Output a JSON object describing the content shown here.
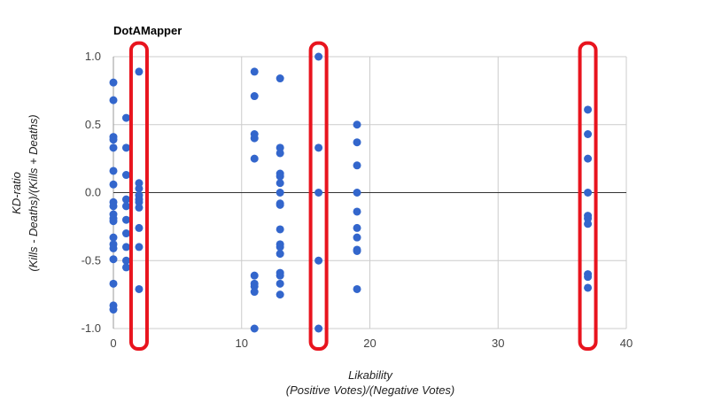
{
  "chart_data": {
    "type": "scatter",
    "title": "DotAMapper",
    "xlabel": "Likability",
    "xlabel_sub": "(Positive Votes)/(Negative Votes)",
    "ylabel": "KD-ratio",
    "ylabel_sub": "(Kills - Deaths)/(Kills + Deaths)",
    "xlim": [
      0,
      40
    ],
    "ylim": [
      -1.0,
      1.0
    ],
    "x_ticks": [
      0,
      10,
      20,
      30,
      40
    ],
    "x_tick_labels": [
      "0",
      "10",
      "20",
      "30",
      "40"
    ],
    "y_ticks": [
      1.0,
      0.5,
      0.0,
      -0.5,
      -1.0
    ],
    "y_tick_labels": [
      "1.0",
      "0.5",
      "0.0",
      "-0.5",
      "-1.0"
    ],
    "grid": true,
    "legend": "none",
    "series": [
      {
        "color": "#3366cc",
        "points": [
          [
            0,
            0.81
          ],
          [
            0,
            0.68
          ],
          [
            0,
            0.41
          ],
          [
            0,
            0.39
          ],
          [
            0,
            0.33
          ],
          [
            0,
            0.16
          ],
          [
            0,
            0.06
          ],
          [
            0,
            -0.07
          ],
          [
            0,
            -0.1
          ],
          [
            0,
            -0.16
          ],
          [
            0,
            -0.19
          ],
          [
            0,
            -0.21
          ],
          [
            0,
            -0.33
          ],
          [
            0,
            -0.38
          ],
          [
            0,
            -0.41
          ],
          [
            0,
            -0.49
          ],
          [
            0,
            -0.67
          ],
          [
            0,
            -0.83
          ],
          [
            0,
            -0.86
          ],
          [
            1,
            0.55
          ],
          [
            1,
            0.33
          ],
          [
            1,
            0.13
          ],
          [
            1,
            -0.05
          ],
          [
            1,
            -0.1
          ],
          [
            1,
            -0.2
          ],
          [
            1,
            -0.3
          ],
          [
            1,
            -0.4
          ],
          [
            1,
            -0.5
          ],
          [
            1,
            -0.55
          ],
          [
            2,
            0.89
          ],
          [
            2,
            0.07
          ],
          [
            2,
            0.03
          ],
          [
            2,
            -0.02
          ],
          [
            2,
            -0.05
          ],
          [
            2,
            -0.07
          ],
          [
            2,
            -0.11
          ],
          [
            2,
            -0.26
          ],
          [
            2,
            -0.4
          ],
          [
            2,
            -0.71
          ],
          [
            11,
            0.89
          ],
          [
            11,
            0.71
          ],
          [
            11,
            0.43
          ],
          [
            11,
            0.4
          ],
          [
            11,
            0.25
          ],
          [
            11,
            -0.61
          ],
          [
            11,
            -0.67
          ],
          [
            11,
            -0.69
          ],
          [
            11,
            -0.73
          ],
          [
            11,
            -1.0
          ],
          [
            13,
            0.84
          ],
          [
            13,
            0.33
          ],
          [
            13,
            0.29
          ],
          [
            13,
            0.14
          ],
          [
            13,
            0.12
          ],
          [
            13,
            0.07
          ],
          [
            13,
            0.0
          ],
          [
            13,
            -0.08
          ],
          [
            13,
            -0.09
          ],
          [
            13,
            -0.27
          ],
          [
            13,
            -0.38
          ],
          [
            13,
            -0.4
          ],
          [
            13,
            -0.45
          ],
          [
            13,
            -0.59
          ],
          [
            13,
            -0.61
          ],
          [
            13,
            -0.67
          ],
          [
            13,
            -0.75
          ],
          [
            16,
            1.0
          ],
          [
            16,
            0.33
          ],
          [
            16,
            0.0
          ],
          [
            16,
            -0.5
          ],
          [
            16,
            -1.0
          ],
          [
            19,
            0.5
          ],
          [
            19,
            0.37
          ],
          [
            19,
            0.2
          ],
          [
            19,
            0.0
          ],
          [
            19,
            -0.14
          ],
          [
            19,
            -0.26
          ],
          [
            19,
            -0.33
          ],
          [
            19,
            -0.42
          ],
          [
            19,
            -0.43
          ],
          [
            19,
            -0.71
          ],
          [
            37,
            0.61
          ],
          [
            37,
            0.43
          ],
          [
            37,
            0.25
          ],
          [
            37,
            0.0
          ],
          [
            37,
            -0.17
          ],
          [
            37,
            -0.19
          ],
          [
            37,
            -0.23
          ],
          [
            37,
            -0.6
          ],
          [
            37,
            -0.62
          ],
          [
            37,
            -0.7
          ]
        ]
      }
    ],
    "highlight_boxes": [
      {
        "x": 2,
        "y_range": [
          -1.15,
          1.1
        ],
        "color": "#e8141e"
      },
      {
        "x": 16,
        "y_range": [
          -1.15,
          1.1
        ],
        "color": "#e8141e"
      },
      {
        "x": 37,
        "y_range": [
          -1.15,
          1.1
        ],
        "color": "#e8141e"
      }
    ]
  }
}
